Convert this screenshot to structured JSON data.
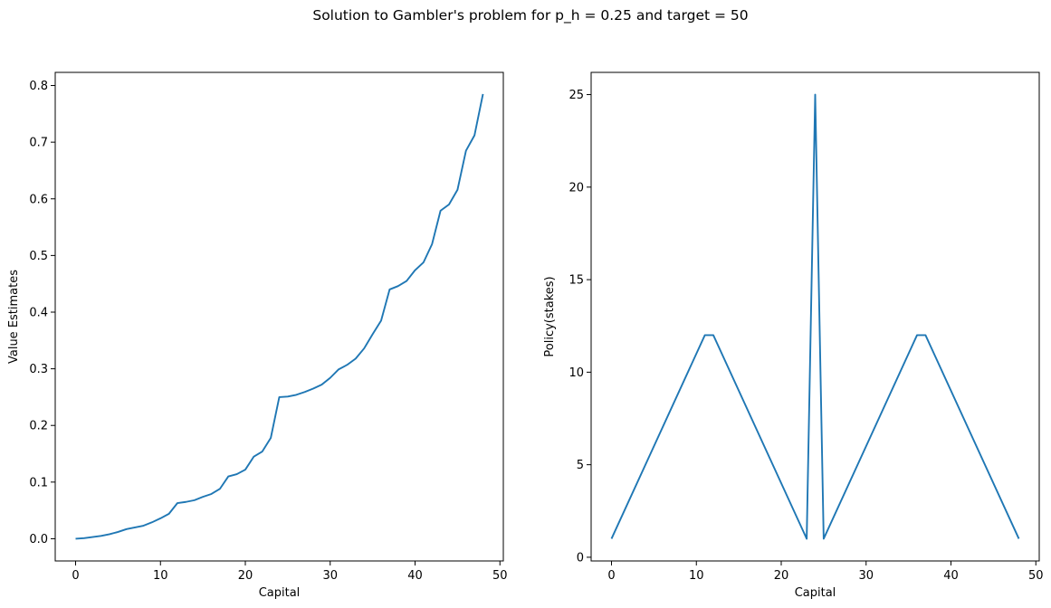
{
  "figure": {
    "suptitle": "Solution to Gambler's problem for p_h = 0.25 and target = 50"
  },
  "chart_data": [
    {
      "type": "line",
      "title": "",
      "xlabel": "Capital",
      "ylabel": "Value Estimates",
      "xlim": [
        -2.4,
        50.4
      ],
      "ylim": [
        -0.0392,
        0.8232
      ],
      "xticks": [
        0,
        10,
        20,
        30,
        40,
        50
      ],
      "xtick_labels": [
        "0",
        "10",
        "20",
        "30",
        "40",
        "50"
      ],
      "yticks": [
        0.0,
        0.1,
        0.2,
        0.3,
        0.4,
        0.5,
        0.6,
        0.7,
        0.8
      ],
      "ytick_labels": [
        "0.0",
        "0.1",
        "0.2",
        "0.3",
        "0.4",
        "0.5",
        "0.6",
        "0.7",
        "0.8"
      ],
      "grid": false,
      "line_color": "#1f77b4",
      "series": [
        {
          "x": [
            0,
            1,
            2,
            3,
            4,
            5,
            6,
            7,
            8,
            9,
            10,
            11,
            12,
            13,
            14,
            15,
            16,
            17,
            18,
            19,
            20,
            21,
            22,
            23,
            24,
            25,
            26,
            27,
            28,
            29,
            30,
            31,
            32,
            33,
            34,
            35,
            36,
            37,
            38,
            39,
            40,
            41,
            42,
            43,
            44,
            45,
            46,
            47,
            48
          ],
          "values": [
            0.0,
            0.001,
            0.003,
            0.005,
            0.008,
            0.012,
            0.017,
            0.02,
            0.023,
            0.029,
            0.036,
            0.044,
            0.063,
            0.065,
            0.068,
            0.074,
            0.079,
            0.088,
            0.11,
            0.114,
            0.122,
            0.145,
            0.154,
            0.178,
            0.25,
            0.251,
            0.254,
            0.259,
            0.265,
            0.272,
            0.284,
            0.299,
            0.307,
            0.318,
            0.336,
            0.361,
            0.385,
            0.44,
            0.446,
            0.455,
            0.474,
            0.488,
            0.52,
            0.579,
            0.59,
            0.616,
            0.685,
            0.712,
            0.785
          ]
        }
      ]
    },
    {
      "type": "line",
      "title": "",
      "xlabel": "Capital",
      "ylabel": "Policy(stakes)",
      "xlim": [
        -2.4,
        50.4
      ],
      "ylim": [
        -0.2,
        26.2
      ],
      "xticks": [
        0,
        10,
        20,
        30,
        40,
        50
      ],
      "xtick_labels": [
        "0",
        "10",
        "20",
        "30",
        "40",
        "50"
      ],
      "yticks": [
        0,
        5,
        10,
        15,
        20,
        25
      ],
      "ytick_labels": [
        "0",
        "5",
        "10",
        "15",
        "20",
        "25"
      ],
      "grid": false,
      "line_color": "#1f77b4",
      "series": [
        {
          "x": [
            0,
            11,
            12,
            23,
            24,
            25,
            36,
            37,
            48
          ],
          "values": [
            1,
            12,
            12,
            1,
            25,
            1,
            12,
            12,
            1
          ]
        }
      ]
    }
  ]
}
